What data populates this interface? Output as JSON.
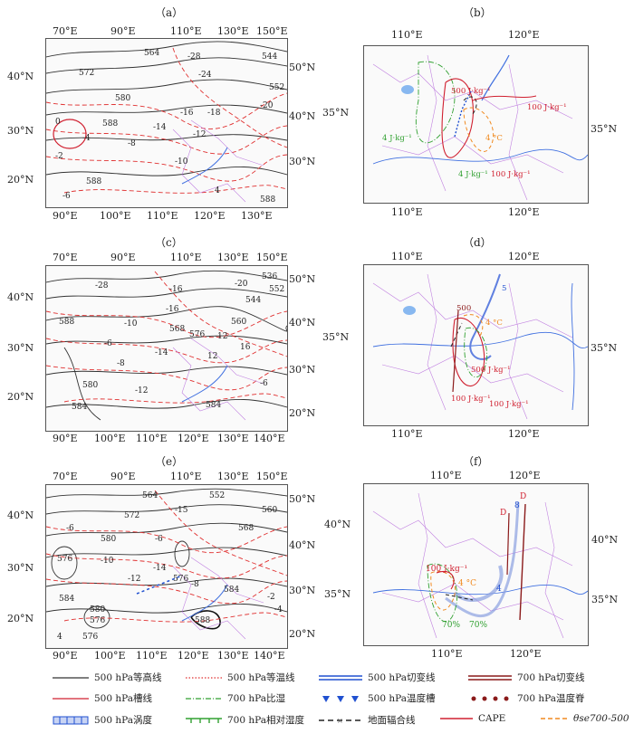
{
  "panels": {
    "a": {
      "label": "（a）",
      "top_ticks": [
        "70°E",
        "90°E",
        "110°E",
        "130°E",
        "150°E"
      ],
      "bottom_ticks": [
        "90°E",
        "100°E",
        "110°E",
        "120°E",
        "130°E"
      ],
      "left_ticks": [
        "40°N",
        "30°N",
        "20°N"
      ],
      "right_ticks": [
        "50°N",
        "40°N",
        "30°N"
      ],
      "contour_labels": [
        "564",
        "572",
        "580",
        "588",
        "588",
        "-28",
        "-24",
        "-20",
        "-16",
        "-12",
        "-10",
        "-18",
        "-14",
        "0",
        "-2",
        "-4",
        "-6",
        "-8",
        "544",
        "552",
        "4",
        "588"
      ]
    },
    "b": {
      "label": "（b）",
      "top_ticks": [
        "110°E",
        "120°E"
      ],
      "bottom_ticks": [
        "110°E",
        "120°E"
      ],
      "left_ticks": [
        "35°N"
      ],
      "right_ticks": [
        "35°N"
      ],
      "labels": [
        "500 J·kg⁻¹",
        "100 J·kg⁻¹",
        "4 J·kg⁻¹",
        "4 °C",
        "4 J·kg⁻¹",
        "100 J·kg⁻¹"
      ]
    },
    "c": {
      "label": "（c）",
      "top_ticks": [
        "70°E",
        "90°E",
        "110°E",
        "130°E",
        "150°E"
      ],
      "bottom_ticks": [
        "90°E",
        "100°E",
        "110°E",
        "120°E",
        "130°E",
        "140°E"
      ],
      "left_ticks": [
        "40°N",
        "30°N",
        "20°N"
      ],
      "right_ticks": [
        "50°N",
        "40°N",
        "30°N",
        "20°N"
      ],
      "contour_labels": [
        "536",
        "544",
        "552",
        "560",
        "568",
        "576",
        "584",
        "584",
        "588",
        "580",
        "-28",
        "-20",
        "-16",
        "-16",
        "-12",
        "-14",
        "-10",
        "-8",
        "-6",
        "-6",
        "12",
        "-12",
        "16"
      ]
    },
    "d": {
      "label": "（d）",
      "top_ticks": [
        "110°E",
        "120°E"
      ],
      "bottom_ticks": [
        "110°E",
        "120°E"
      ],
      "left_ticks": [
        "35°N"
      ],
      "right_ticks": [
        "35°N"
      ],
      "labels": [
        "500",
        "4 °C",
        "500 J·kg⁻¹",
        "100 J·kg⁻¹",
        "100 J·kg⁻¹",
        "5"
      ]
    },
    "e": {
      "label": "（e）",
      "top_ticks": [
        "70°E",
        "90°E",
        "110°E",
        "130°E",
        "150°E"
      ],
      "bottom_ticks": [
        "90°E",
        "100°E",
        "110°E",
        "120°E",
        "130°E",
        "140°E"
      ],
      "left_ticks": [
        "40°N",
        "30°N",
        "20°N"
      ],
      "right_ticks": [
        "50°N",
        "40°N",
        "30°N",
        "20°N"
      ],
      "contour_labels": [
        "564",
        "552",
        "560",
        "572",
        "568",
        "580",
        "576",
        "584",
        "580",
        "576",
        "588",
        "584",
        "576",
        "-6",
        "-10",
        "-12",
        "-14",
        "-15",
        "-6",
        "-8",
        "-2",
        "-4",
        "4",
        "576"
      ]
    },
    "f": {
      "label": "（f）",
      "top_ticks": [
        "110°E",
        "120°E"
      ],
      "bottom_ticks": [
        "110°E",
        "120°E"
      ],
      "left_ticks": [
        "40°N",
        "35°N"
      ],
      "right_ticks": [
        "40°N",
        "35°N"
      ],
      "labels": [
        "D",
        "D",
        "8",
        "100 J·kg⁻¹",
        "4 °C",
        "4",
        "70%",
        "70%"
      ]
    }
  },
  "legend": [
    {
      "label": "500 hPa等高线",
      "style": "black-solid"
    },
    {
      "label": "500 hPa等温线",
      "style": "red-dotted"
    },
    {
      "label": "500 hPa切变线",
      "style": "blue-double"
    },
    {
      "label": "700 hPa切变线",
      "style": "darkred-double"
    },
    {
      "label": "500 hPa槽线",
      "style": "red-solid"
    },
    {
      "label": "700 hPa比湿",
      "style": "green-dashdot"
    },
    {
      "label": "500 hPa温度槽",
      "style": "blue-triangles"
    },
    {
      "label": "700 hPa温度脊",
      "style": "darkred-dots"
    },
    {
      "label": "500 hPa涡度",
      "style": "blue-hatched"
    },
    {
      "label": "700 hPa相对湿度",
      "style": "green-comb"
    },
    {
      "label": "地面辐合线",
      "style": "black-dashx"
    },
    {
      "label": "CAPE",
      "style": "red-solid"
    },
    {
      "label": "θse700-500",
      "style": "orange-dashed"
    }
  ],
  "colors": {
    "contour": "#333333",
    "isotherm": "#e03030",
    "trough": "#d02030",
    "shear500": "#2050d0",
    "shear700": "#8b1a1a",
    "humidity": "#30a030",
    "theta": "#f08a20",
    "boundary": "#c080e0",
    "river": "#4070e0"
  }
}
